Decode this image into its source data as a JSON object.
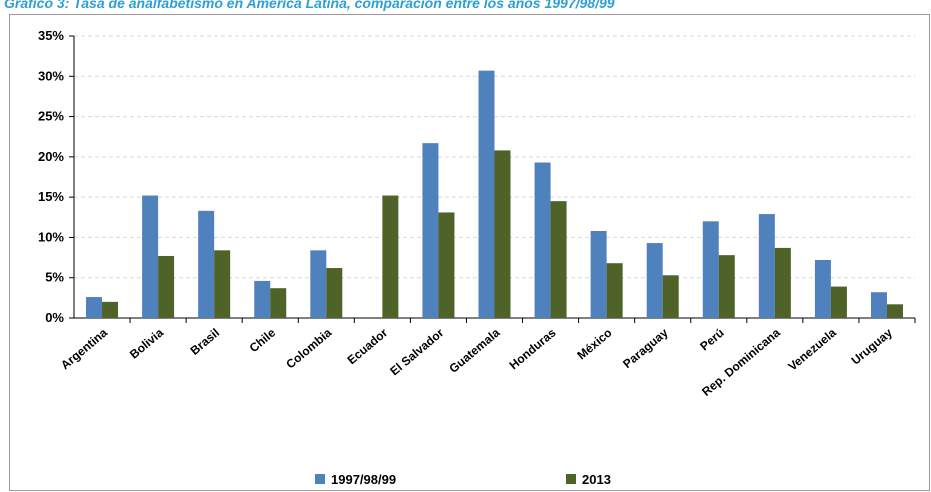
{
  "title": "Gráfico 3: Tasa de analfabetismo en América Latina, comparación entre los años 1997/98/99",
  "colors": {
    "series1": "#4f81bd",
    "series2": "#4f6228",
    "grid": "#d9d9d9",
    "axis": "#000000"
  },
  "chart_data": {
    "type": "bar",
    "title": "",
    "xlabel": "",
    "ylabel": "",
    "ylim": [
      0,
      35
    ],
    "yticks": [
      "0%",
      "5%",
      "10%",
      "15%",
      "20%",
      "25%",
      "30%",
      "35%"
    ],
    "grid": "horizontal dashed",
    "legend_position": "bottom",
    "categories": [
      "Argentina",
      "Bolivia",
      "Brasil",
      "Chile",
      "Colombia",
      "Ecuador",
      "El Salvador",
      "Guatemala",
      "Honduras",
      "México",
      "Paraguay",
      "Perú",
      "Rep. Dominicana",
      "Venezuela",
      "Uruguay"
    ],
    "series": [
      {
        "name": "1997/98/99",
        "values": [
          2.6,
          15.2,
          13.3,
          4.6,
          8.4,
          null,
          21.7,
          30.7,
          19.3,
          10.8,
          9.3,
          12.0,
          12.9,
          7.2,
          3.2
        ]
      },
      {
        "name": "2013",
        "values": [
          2.0,
          7.7,
          8.4,
          3.7,
          6.2,
          15.2,
          13.1,
          20.8,
          14.5,
          6.8,
          5.3,
          7.8,
          8.7,
          3.9,
          1.7
        ]
      }
    ]
  }
}
